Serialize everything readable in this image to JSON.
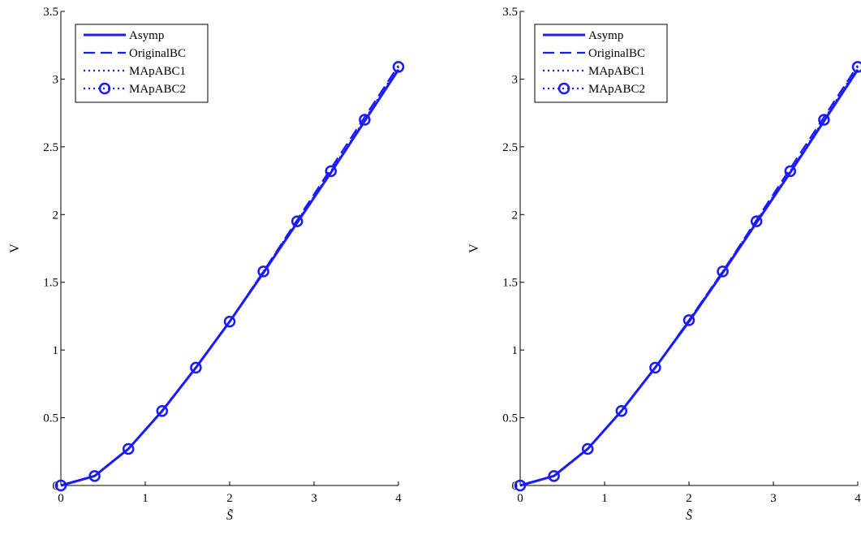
{
  "colors": {
    "series": "#1a1aff",
    "axis": "#000000",
    "background": "#ffffff"
  },
  "chart_data": [
    {
      "type": "line",
      "xlabel": "S̃",
      "ylabel": "V",
      "xlim": [
        0,
        4
      ],
      "ylim": [
        0,
        3.5
      ],
      "xticks": [
        0,
        1,
        2,
        3,
        4
      ],
      "yticks": [
        0,
        0.5,
        1,
        1.5,
        2,
        2.5,
        3,
        3.5
      ],
      "xtick_labels": [
        "0",
        "1",
        "2",
        "3",
        "4"
      ],
      "ytick_labels": [
        "0",
        "0.5",
        "1",
        "1.5",
        "2",
        "2.5",
        "3",
        "3.5"
      ],
      "grid": false,
      "legend_position": "top-left",
      "x": [
        0,
        0.4,
        0.8,
        1.2,
        1.6,
        2.0,
        2.4,
        2.8,
        3.2,
        3.6,
        4.0
      ],
      "series": [
        {
          "name": "Asymp",
          "style": "solid",
          "values": [
            0,
            0.07,
            0.27,
            0.55,
            0.87,
            1.21,
            1.57,
            1.94,
            2.31,
            2.69,
            3.07
          ]
        },
        {
          "name": "OriginalBC",
          "style": "dashed",
          "values": [
            0,
            0.07,
            0.27,
            0.55,
            0.87,
            1.21,
            1.58,
            1.96,
            2.34,
            2.72,
            3.1
          ]
        },
        {
          "name": "MApABC1",
          "style": "dotted",
          "values": [
            0,
            0.07,
            0.27,
            0.55,
            0.87,
            1.21,
            1.58,
            1.95,
            2.32,
            2.7,
            3.09
          ]
        },
        {
          "name": "MApABC2",
          "style": "dotted-circle",
          "values": [
            0,
            0.07,
            0.27,
            0.55,
            0.87,
            1.21,
            1.58,
            1.95,
            2.32,
            2.7,
            3.09
          ]
        }
      ]
    },
    {
      "type": "line",
      "xlabel": "S̃",
      "ylabel": "V",
      "xlim": [
        0,
        4
      ],
      "ylim": [
        0,
        3.5
      ],
      "xticks": [
        0,
        1,
        2,
        3,
        4
      ],
      "yticks": [
        0,
        0.5,
        1,
        1.5,
        2,
        2.5,
        3,
        3.5
      ],
      "xtick_labels": [
        "0",
        "1",
        "2",
        "3",
        "4"
      ],
      "ytick_labels": [
        "0",
        "0.5",
        "1",
        "1.5",
        "2",
        "2.5",
        "3",
        "3.5"
      ],
      "grid": false,
      "legend_position": "top-left",
      "x": [
        0,
        0.4,
        0.8,
        1.2,
        1.6,
        2.0,
        2.4,
        2.8,
        3.2,
        3.6,
        4.0
      ],
      "series": [
        {
          "name": "Asymp",
          "style": "solid",
          "values": [
            0,
            0.07,
            0.27,
            0.55,
            0.87,
            1.21,
            1.57,
            1.94,
            2.31,
            2.69,
            3.07
          ]
        },
        {
          "name": "OriginalBC",
          "style": "dashed",
          "values": [
            0,
            0.07,
            0.27,
            0.55,
            0.87,
            1.22,
            1.58,
            1.96,
            2.34,
            2.72,
            3.1
          ]
        },
        {
          "name": "MApABC1",
          "style": "dotted",
          "values": [
            0,
            0.07,
            0.27,
            0.55,
            0.87,
            1.21,
            1.58,
            1.95,
            2.32,
            2.7,
            3.09
          ]
        },
        {
          "name": "MApABC2",
          "style": "dotted-circle",
          "values": [
            0,
            0.07,
            0.27,
            0.55,
            0.87,
            1.22,
            1.58,
            1.95,
            2.32,
            2.7,
            3.09
          ]
        }
      ]
    }
  ]
}
